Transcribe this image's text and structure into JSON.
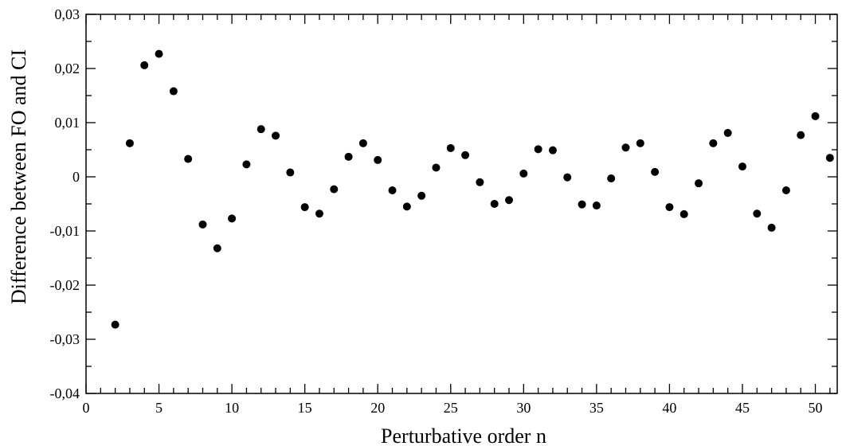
{
  "chart_data": {
    "type": "scatter",
    "xlabel": "Perturbative order n",
    "ylabel": "Difference between FO and CI",
    "xlim": [
      0,
      51.5
    ],
    "ylim": [
      -0.04,
      0.03
    ],
    "grid": false,
    "x_ticks": [
      {
        "value": 0,
        "label": "0"
      },
      {
        "value": 5,
        "label": "5"
      },
      {
        "value": 10,
        "label": "10"
      },
      {
        "value": 15,
        "label": "15"
      },
      {
        "value": 20,
        "label": "20"
      },
      {
        "value": 25,
        "label": "25"
      },
      {
        "value": 30,
        "label": "30"
      },
      {
        "value": 35,
        "label": "35"
      },
      {
        "value": 40,
        "label": "40"
      },
      {
        "value": 45,
        "label": "45"
      },
      {
        "value": 50,
        "label": "50"
      }
    ],
    "y_ticks": [
      {
        "value": -0.04,
        "label": "-0,04"
      },
      {
        "value": -0.03,
        "label": "-0,03"
      },
      {
        "value": -0.02,
        "label": "-0,02"
      },
      {
        "value": -0.01,
        "label": "-0,01"
      },
      {
        "value": 0,
        "label": "0"
      },
      {
        "value": 0.01,
        "label": "0,01"
      },
      {
        "value": 0.02,
        "label": "0,02"
      },
      {
        "value": 0.03,
        "label": "0,03"
      }
    ],
    "marker_color": "#000000",
    "x": [
      2,
      3,
      4,
      5,
      6,
      7,
      8,
      9,
      10,
      11,
      12,
      13,
      14,
      15,
      16,
      17,
      18,
      19,
      20,
      21,
      22,
      23,
      24,
      25,
      26,
      27,
      28,
      29,
      30,
      31,
      32,
      33,
      34,
      35,
      36,
      37,
      38,
      39,
      40,
      41,
      42,
      43,
      44,
      45,
      46,
      47,
      48,
      49,
      50,
      51
    ],
    "y": [
      -0.0273,
      0.0062,
      0.0206,
      0.0227,
      0.0158,
      0.0033,
      -0.0088,
      -0.0132,
      -0.0077,
      0.0023,
      0.0088,
      0.0076,
      0.0008,
      -0.0056,
      -0.0068,
      -0.0023,
      0.0037,
      0.0062,
      0.0031,
      -0.0025,
      -0.0055,
      -0.0035,
      0.0017,
      0.0053,
      0.004,
      -0.001,
      -0.005,
      -0.0043,
      0.0006,
      0.0051,
      0.0049,
      -0.0001,
      -0.0051,
      -0.0053,
      -0.0003,
      0.0054,
      0.0062,
      0.0009,
      -0.0056,
      -0.0069,
      -0.0012,
      0.0062,
      0.0081,
      0.0019,
      -0.0068,
      -0.0094,
      -0.0025,
      0.0077,
      0.0112,
      0.0035
    ]
  }
}
